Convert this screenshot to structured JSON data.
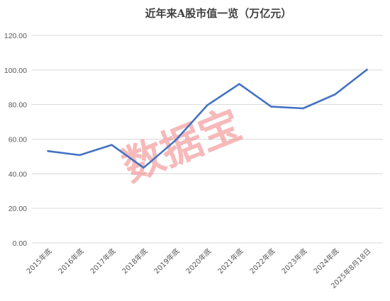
{
  "chart_data": {
    "type": "line",
    "title": "近年来A股市值一览（万亿元）",
    "xlabel": "",
    "ylabel": "",
    "categories": [
      "2015年底",
      "2016年底",
      "2017年底",
      "2018年底",
      "2019年底",
      "2020年底",
      "2021年底",
      "2022年底",
      "2023年底",
      "2024年底",
      "2025年8月18日"
    ],
    "series": [
      {
        "values": [
          53.1,
          50.8,
          56.7,
          43.5,
          59.3,
          79.7,
          91.9,
          78.8,
          77.8,
          85.9,
          100.2
        ]
      }
    ],
    "ylim": [
      0,
      120
    ],
    "yticks": [
      "0.00",
      "20.00",
      "40.00",
      "60.00",
      "80.00",
      "100.00",
      "120.00"
    ],
    "ytick_values": [
      0,
      20,
      40,
      60,
      80,
      100,
      120
    ],
    "grid": true,
    "legend": "none",
    "colors": {
      "line": "#4472c4",
      "grid": "#d9d9d9",
      "watermark": "#f08080"
    }
  },
  "watermark": "数据宝"
}
